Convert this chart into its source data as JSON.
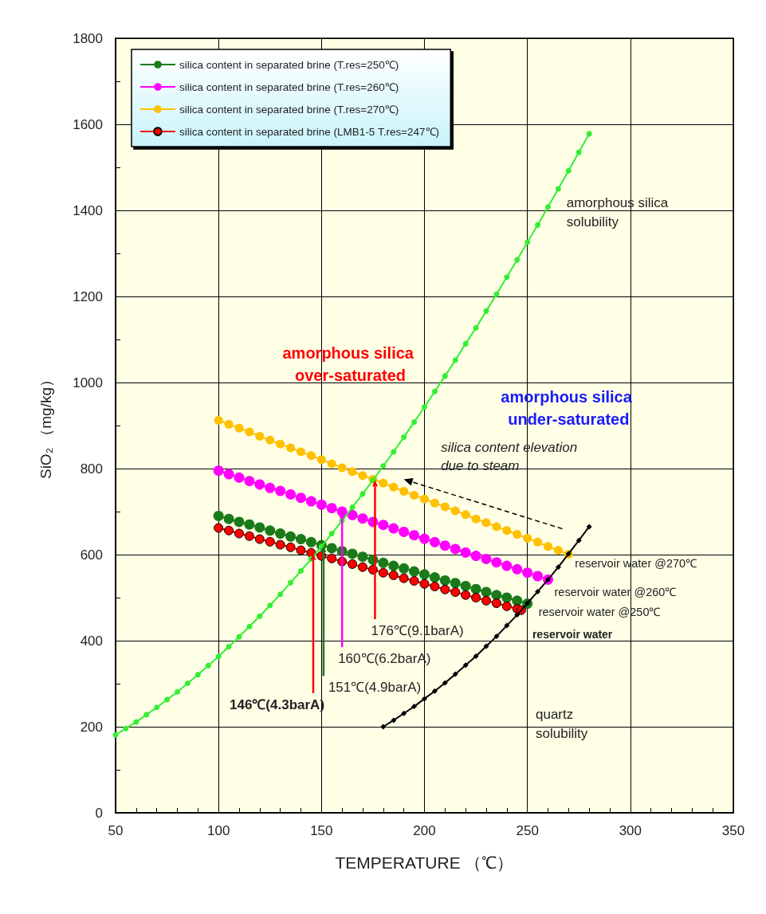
{
  "chart_data": {
    "type": "line",
    "xlabel": "TEMPERATURE （℃）",
    "ylabel": "SiO₂ （mg/kg）",
    "xlim": [
      50,
      350
    ],
    "xticks": [
      50,
      100,
      150,
      200,
      250,
      300,
      350
    ],
    "ylim": [
      0,
      1800
    ],
    "yticks": [
      0,
      200,
      400,
      600,
      800,
      1000,
      1200,
      1400,
      1600,
      1800
    ],
    "grid": true,
    "legend": "top left",
    "series": [
      {
        "name": "silica content in separated brine (T.res=250℃)",
        "color": "#1a7a1a",
        "marker": "circle",
        "x": [
          100,
          105,
          110,
          115,
          120,
          125,
          130,
          135,
          140,
          145,
          150,
          155,
          160,
          165,
          170,
          175,
          180,
          185,
          190,
          195,
          200,
          205,
          210,
          215,
          220,
          225,
          230,
          235,
          240,
          245,
          250
        ],
        "values": [
          690,
          683,
          676,
          670,
          663,
          656,
          649,
          642,
          636,
          629,
          622,
          615,
          608,
          602,
          595,
          588,
          581,
          574,
          568,
          561,
          554,
          547,
          540,
          534,
          527,
          520,
          513,
          506,
          500,
          493,
          486
        ]
      },
      {
        "name": "silica content in separated brine (T.res=260℃)",
        "color": "#ff00ff",
        "marker": "circle",
        "x": [
          100,
          105,
          110,
          115,
          120,
          125,
          130,
          135,
          140,
          145,
          150,
          155,
          160,
          165,
          170,
          175,
          180,
          185,
          190,
          195,
          200,
          205,
          210,
          215,
          220,
          225,
          230,
          235,
          240,
          245,
          250,
          255,
          260
        ],
        "values": [
          795,
          787,
          779,
          771,
          763,
          755,
          748,
          740,
          732,
          724,
          716,
          708,
          700,
          692,
          684,
          676,
          669,
          661,
          653,
          645,
          637,
          629,
          621,
          613,
          605,
          597,
          590,
          582,
          574,
          566,
          558,
          550,
          542
        ]
      },
      {
        "name": "silica content in separated brine (T.res=270℃)",
        "color": "#ffc000",
        "marker": "circle",
        "x": [
          100,
          105,
          110,
          115,
          120,
          125,
          130,
          135,
          140,
          145,
          150,
          155,
          160,
          165,
          170,
          175,
          180,
          185,
          190,
          195,
          200,
          205,
          210,
          215,
          220,
          225,
          230,
          235,
          240,
          245,
          250,
          255,
          260,
          265,
          270
        ],
        "values": [
          912,
          903,
          894,
          885,
          875,
          866,
          857,
          848,
          839,
          830,
          821,
          811,
          802,
          793,
          784,
          775,
          766,
          757,
          747,
          738,
          729,
          720,
          711,
          702,
          693,
          683,
          674,
          665,
          656,
          647,
          638,
          629,
          619,
          610,
          601
        ]
      },
      {
        "name": "silica content in separated brine (LMB1-5 T.res=247℃)",
        "color": "#ff0000",
        "marker": "circle",
        "x": [
          100,
          105,
          110,
          115,
          120,
          125,
          130,
          135,
          140,
          145,
          150,
          155,
          160,
          165,
          170,
          175,
          180,
          185,
          190,
          195,
          200,
          205,
          210,
          215,
          220,
          225,
          230,
          235,
          240,
          245,
          247
        ],
        "values": [
          662,
          656,
          649,
          643,
          636,
          630,
          623,
          617,
          610,
          604,
          597,
          591,
          584,
          578,
          571,
          565,
          558,
          552,
          545,
          539,
          532,
          526,
          519,
          513,
          506,
          500,
          493,
          487,
          480,
          474,
          471
        ]
      },
      {
        "color": "#33ee33",
        "marker": "circle",
        "x": [
          50,
          55,
          60,
          65,
          70,
          75,
          80,
          85,
          90,
          95,
          100,
          105,
          110,
          115,
          120,
          125,
          130,
          135,
          140,
          145,
          150,
          155,
          160,
          165,
          170,
          175,
          180,
          185,
          190,
          195,
          200,
          205,
          210,
          215,
          220,
          225,
          230,
          235,
          240,
          245,
          250,
          255,
          260,
          265,
          270,
          275,
          280
        ],
        "values": [
          181,
          196,
          211,
          228,
          245,
          263,
          281,
          301,
          321,
          342,
          363,
          386,
          409,
          433,
          457,
          482,
          508,
          535,
          562,
          590,
          619,
          649,
          679,
          710,
          741,
          773,
          806,
          839,
          873,
          908,
          943,
          979,
          1015,
          1052,
          1090,
          1127,
          1166,
          1205,
          1245,
          1285,
          1326,
          1366,
          1408,
          1450,
          1492,
          1535,
          1578
        ]
      },
      {
        "color": "#000000",
        "marker": "diamond",
        "x": [
          180,
          185,
          190,
          195,
          200,
          205,
          210,
          215,
          220,
          225,
          230,
          235,
          240,
          245,
          250,
          255,
          260,
          265,
          270,
          275,
          280
        ],
        "values": [
          200,
          215,
          231,
          247,
          265,
          283,
          302,
          322,
          343,
          364,
          387,
          410,
          435,
          460,
          487,
          514,
          542,
          571,
          602,
          633,
          665
        ]
      }
    ],
    "annotations": [
      "amorphous silica solubility",
      "quartz solubility",
      "amorphous silica over-saturated",
      "amorphous silica under-saturated",
      "silica content elevation due to steam",
      {
        "text": "reservoir water @270℃",
        "x": 270,
        "y": 601
      },
      {
        "text": "reservoir water @260℃",
        "x": 260,
        "y": 542
      },
      {
        "text": "reservoir water @250℃",
        "x": 250,
        "y": 486
      },
      {
        "text": "reservoir water",
        "x": 247,
        "y": 471
      },
      {
        "text": "176℃(9.1barA)",
        "x": 176,
        "y": 773
      },
      {
        "text": "160℃(6.2barA)",
        "x": 160,
        "y": 700
      },
      {
        "text": "151℃(4.9barA)",
        "x": 151,
        "y": 621
      },
      {
        "text": "146℃(4.3barA)",
        "x": 146,
        "y": 603
      }
    ]
  }
}
